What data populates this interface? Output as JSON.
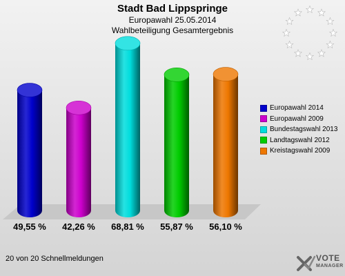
{
  "header": {
    "title": "Stadt Bad Lippspringe",
    "subtitle": "Europawahl 25.05.2014",
    "subtitle2": "Wahlbeteiligung Gesamtergebnis"
  },
  "chart_data": {
    "type": "bar",
    "categories": [
      "Europawahl 2014",
      "Europawahl 2009",
      "Bundestagswahl 2013",
      "Landtagswahl 2012",
      "Kreistagswahl 2009"
    ],
    "values": [
      49.55,
      42.26,
      68.81,
      55.87,
      56.1
    ],
    "value_labels": [
      "49,55 %",
      "42,26 %",
      "68,81 %",
      "55,87 %",
      "56,10 %"
    ],
    "colors": [
      "#0000cc",
      "#cc00cc",
      "#00dddd",
      "#00cc00",
      "#ee7700"
    ],
    "ylim": [
      0,
      75
    ],
    "legend_position": "right",
    "grid": false
  },
  "legend": [
    {
      "label": "Europawahl 2014",
      "color": "#0000cc"
    },
    {
      "label": "Europawahl 2009",
      "color": "#cc00cc"
    },
    {
      "label": "Bundestagswahl 2013",
      "color": "#00dddd"
    },
    {
      "label": "Landtagswahl 2012",
      "color": "#00cc00"
    },
    {
      "label": "Kreistagswahl 2009",
      "color": "#ee7700"
    }
  ],
  "footer": {
    "text": "20 von 20 Schnellmeldungen"
  },
  "brand": {
    "line1": "VOTE",
    "line2": "MANAGER",
    "icon": "x-check-logo-icon"
  },
  "emblem": {
    "icon": "eu-stars-icon"
  }
}
